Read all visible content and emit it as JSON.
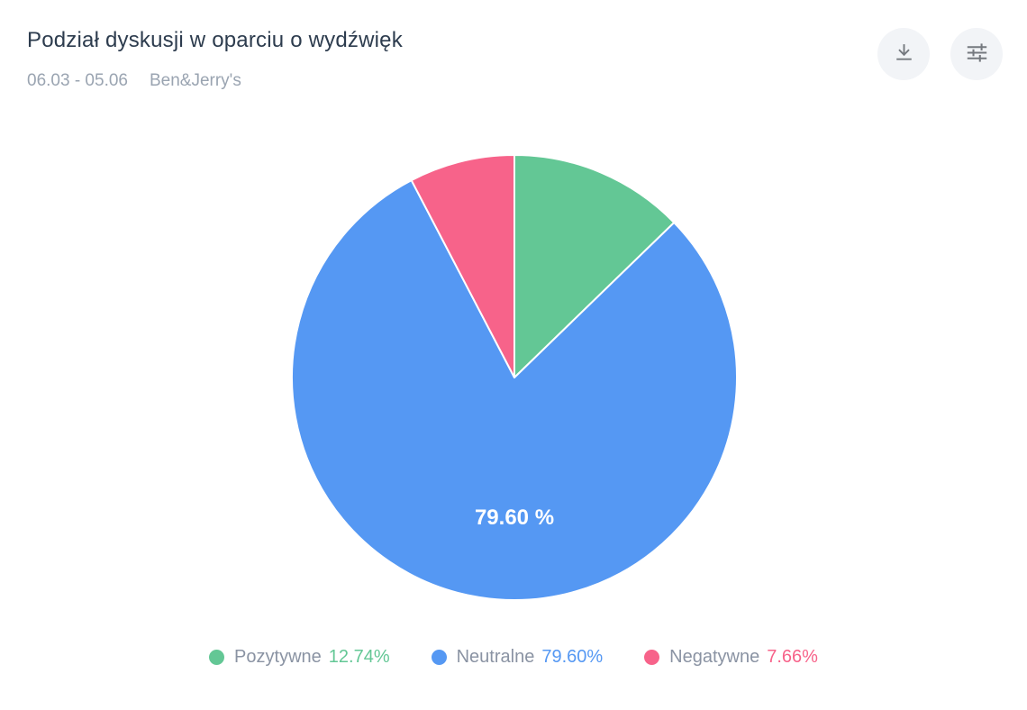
{
  "header": {
    "title": "Podział dyskusji w oparciu o wydźwięk",
    "date_range": "06.03 - 05.06",
    "project_name": "Ben&Jerry's",
    "icons": [
      "download-icon",
      "sliders-icon"
    ]
  },
  "colors": {
    "title_text": "#2d3c4e",
    "subtitle_text": "#9aa4b1",
    "legend_label_text": "#8a93a3",
    "icon_stroke": "#75797f",
    "icon_button_bg": "#f2f4f7",
    "positive": "#63c795",
    "neutral": "#5598f3",
    "negative": "#f7638a"
  },
  "chart_data": {
    "type": "pie",
    "title": "Podział dyskusji w oparciu o wydźwięk",
    "start_angle_deg": -90,
    "direction": "clockwise",
    "legend_position": "bottom",
    "slice_border_color": "#ffffff",
    "slices": [
      {
        "label": "Pozytywne",
        "value": 12.74,
        "display_value": "12.74%",
        "color": "#63c795",
        "inner_label": ""
      },
      {
        "label": "Neutralne",
        "value": 79.6,
        "display_value": "79.60%",
        "color": "#5598f3",
        "inner_label": "79.60 %"
      },
      {
        "label": "Negatywne",
        "value": 7.66,
        "display_value": "7.66%",
        "color": "#f7638a",
        "inner_label": ""
      }
    ]
  }
}
